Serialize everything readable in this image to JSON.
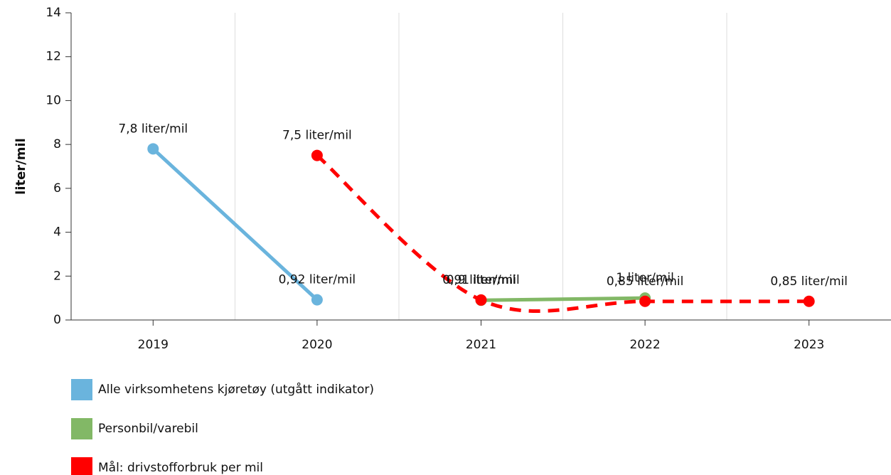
{
  "chart_data": {
    "type": "line",
    "ylabel": "liter/mil",
    "categories": [
      "2019",
      "2020",
      "2021",
      "2022",
      "2023"
    ],
    "ylim": [
      0,
      14
    ],
    "yticks": [
      0,
      2,
      4,
      6,
      8,
      10,
      12,
      14
    ],
    "legend": "bottom",
    "series": [
      {
        "name": "Alle virksomhetens kjøretøy (utgått indikator)",
        "color": "#6ab4dd",
        "dashed": false,
        "smooth": false,
        "values": [
          7.8,
          0.92,
          null,
          null,
          null
        ],
        "value_labels": [
          "7,8 liter/mil",
          "0,92 liter/mil",
          null,
          null,
          null
        ]
      },
      {
        "name": "Personbil/varebil",
        "color": "#82b866",
        "dashed": false,
        "smooth": false,
        "values": [
          null,
          null,
          0.9,
          1,
          null
        ],
        "value_labels": [
          null,
          null,
          "0,9 liter/mil",
          "1 liter/mil",
          null
        ]
      },
      {
        "name": "Mål: drivstofforbruk per mil",
        "color": "#ff0000",
        "dashed": true,
        "smooth": true,
        "values": [
          null,
          7.5,
          0.91,
          0.85,
          0.85
        ],
        "value_labels": [
          null,
          "7,5 liter/mil",
          "0,91 liter/mil",
          "0,85 liter/mil",
          "0,85 liter/mil"
        ]
      }
    ]
  }
}
